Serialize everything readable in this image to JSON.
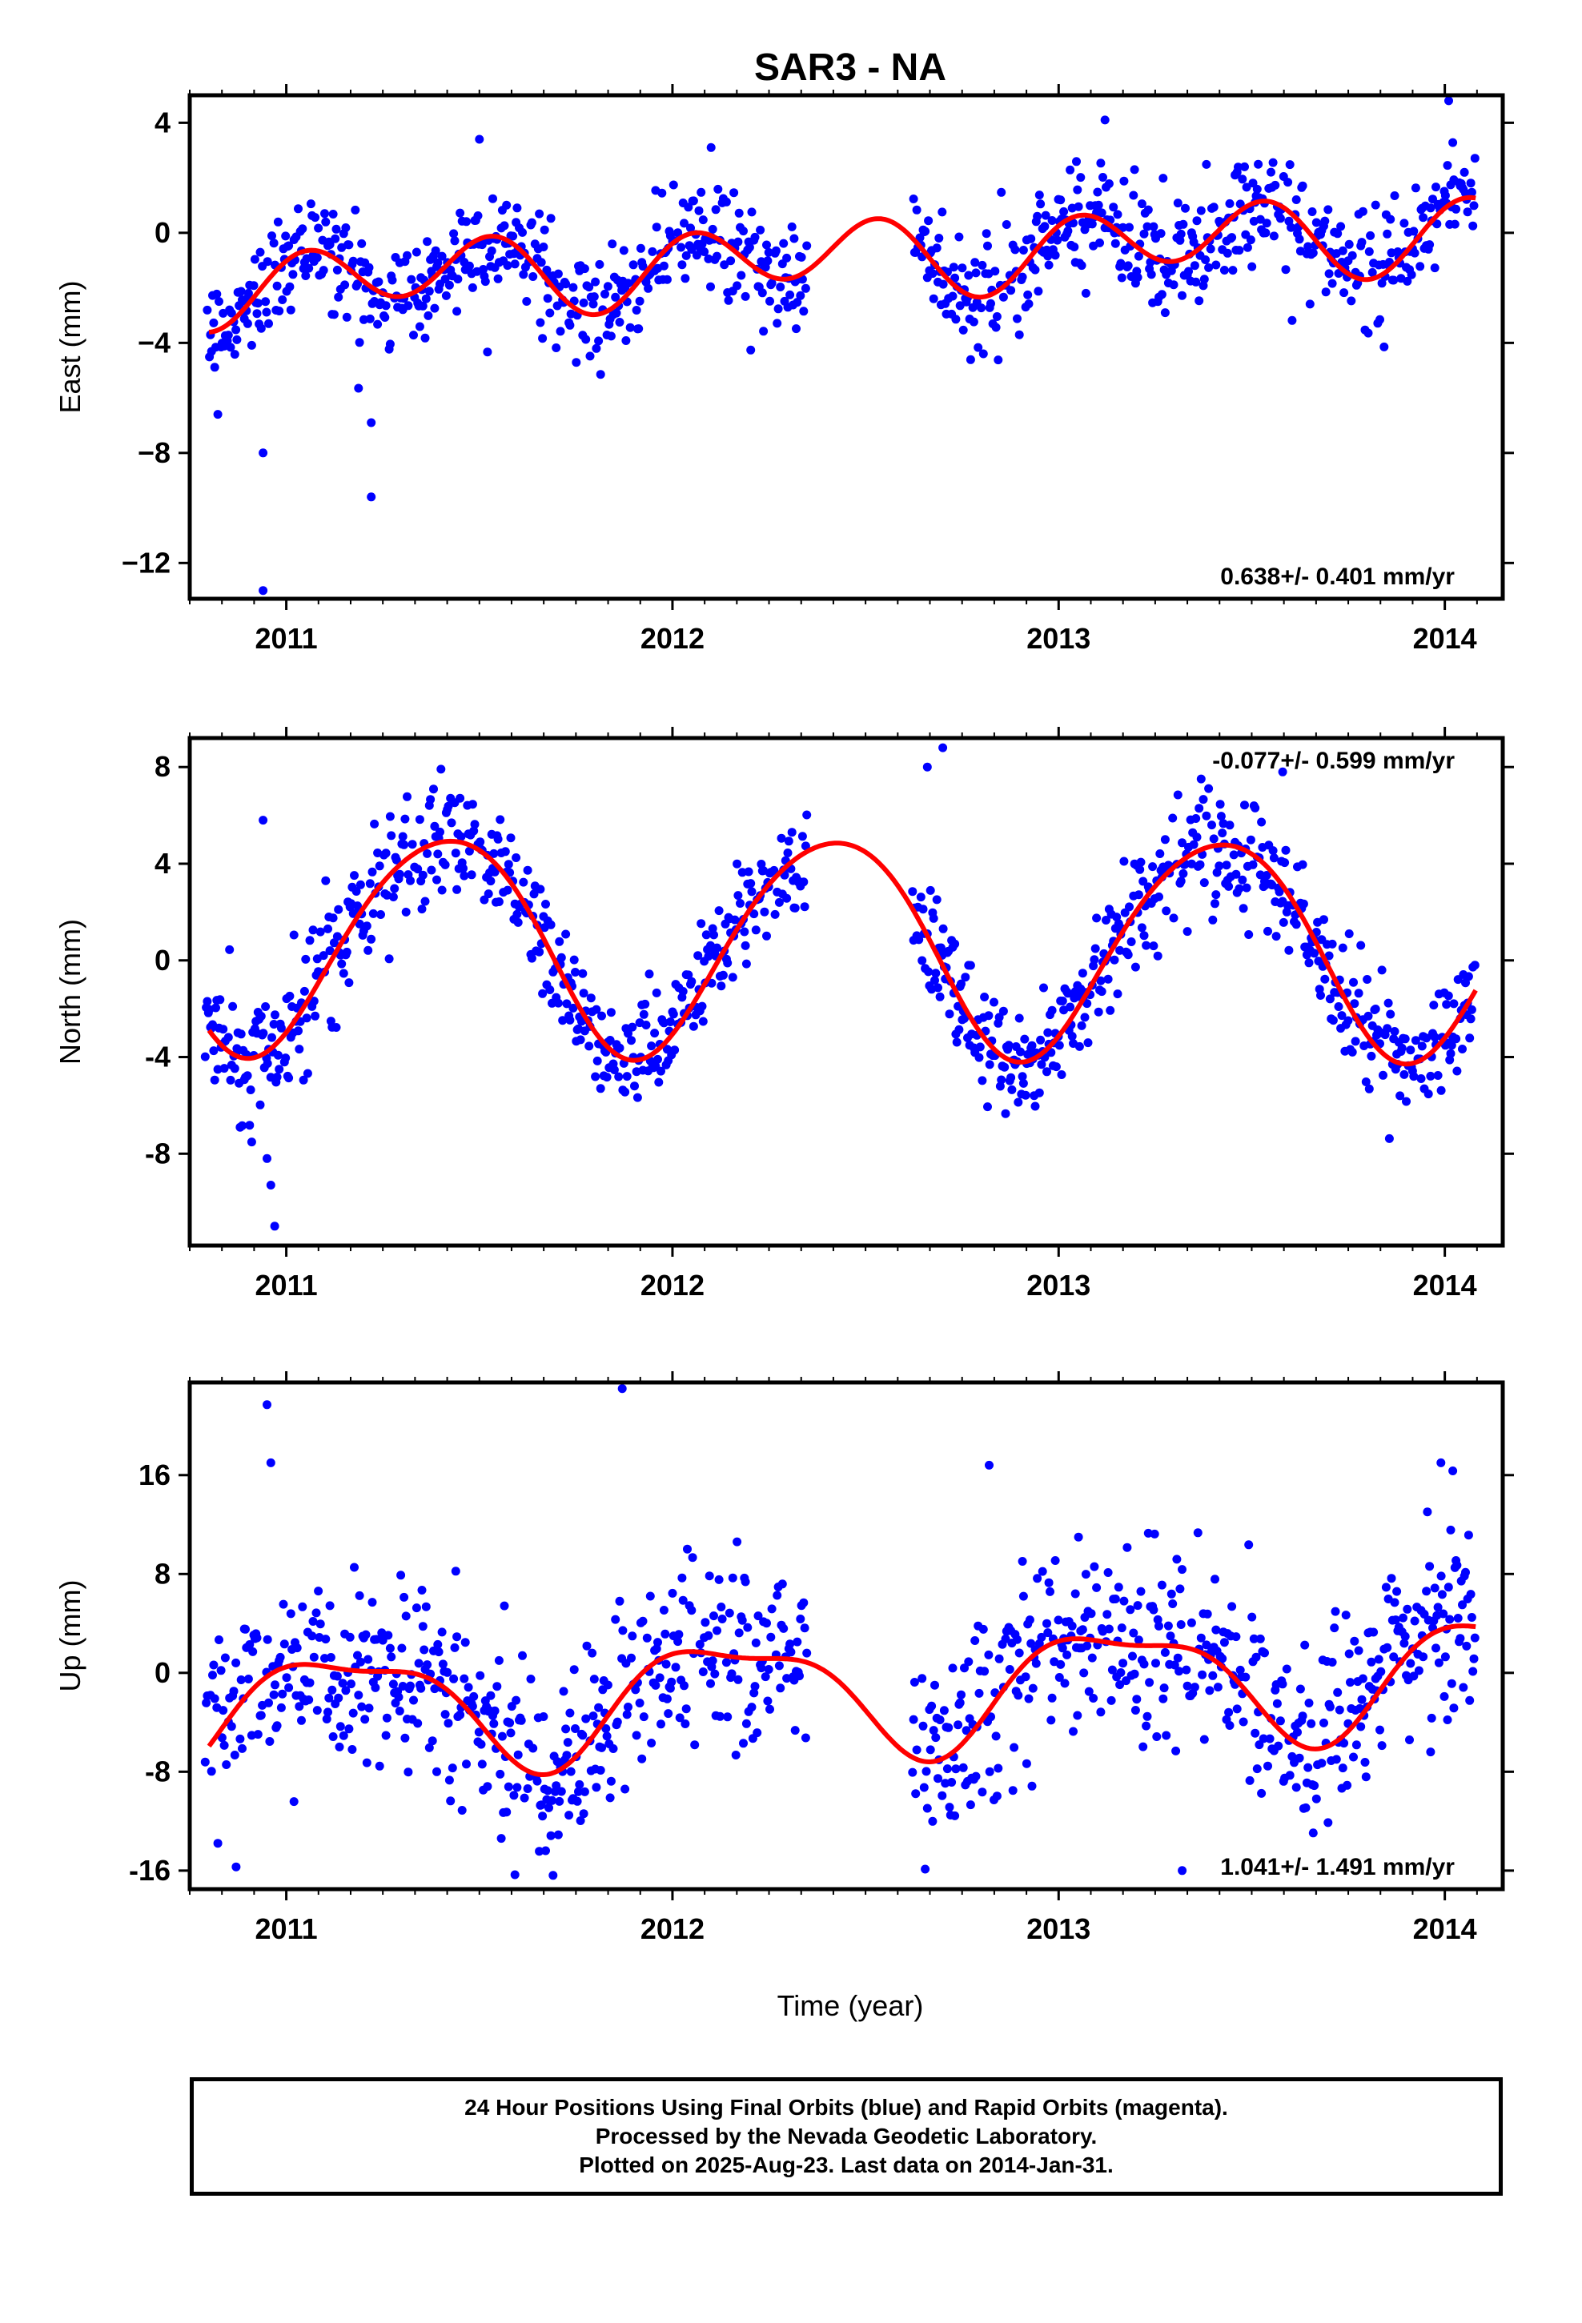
{
  "title": "SAR3 - NA",
  "x_axis_label": "Time (year)",
  "x_ticks": [
    "2011",
    "2012",
    "2013",
    "2014"
  ],
  "colors": {
    "points": "#0000ff",
    "fit": "#ff0000",
    "frame": "#000000"
  },
  "footer": {
    "line1": "24 Hour Positions Using Final Orbits (blue) and Rapid Orbits (magenta).",
    "line2": "Processed by the Nevada Geodetic Laboratory.",
    "line3": "Plotted on 2025-Aug-23. Last data on 2014-Jan-31."
  },
  "chart_data": [
    {
      "type": "scatter",
      "component": "East",
      "ylabel": "East (mm)",
      "xlim": [
        2010.75,
        2014.15
      ],
      "ylim": [
        -13.3,
        5.0
      ],
      "yticks": [
        4,
        0,
        -4,
        -8,
        -12
      ],
      "ytick_labels": [
        "4",
        "0",
        "−4",
        "−8",
        "−12"
      ],
      "rate_text": "0.638+/- 0.401 mm/yr",
      "rate_position": "bottom-right",
      "data_span": [
        2010.79,
        2014.08
      ],
      "gap": [
        2012.35,
        2012.62
      ],
      "fit": {
        "label": "seasonal fit",
        "offset": -0.9,
        "rate": 0.638,
        "t0": 2012.4,
        "annual_amp": 0.5,
        "annual_phase": -0.5,
        "semiannual_amp": 1.2,
        "semiannual_phase": 1.0
      },
      "scatter_sd": 1.0,
      "sample_points": [
        [
          2010.9,
          -3.3
        ],
        [
          2010.94,
          -8.0
        ],
        [
          2010.94,
          -13.0
        ],
        [
          2011.22,
          -6.9
        ],
        [
          2011.22,
          -9.6
        ],
        [
          2011.5,
          3.4
        ],
        [
          2012.1,
          3.1
        ],
        [
          2013.12,
          4.1
        ],
        [
          2014.01,
          4.8
        ]
      ]
    },
    {
      "type": "scatter",
      "component": "North",
      "ylabel": "North (mm)",
      "xlim": [
        2010.75,
        2014.15
      ],
      "ylim": [
        -11.8,
        9.2
      ],
      "yticks": [
        8,
        4,
        0,
        -4,
        -8
      ],
      "ytick_labels": [
        "8",
        "4",
        "0",
        "-4",
        "-8"
      ],
      "rate_text": "-0.077+/- 0.599 mm/yr",
      "rate_position": "top-right",
      "data_span": [
        2010.79,
        2014.08
      ],
      "gap": [
        2012.35,
        2012.62
      ],
      "fit": {
        "label": "seasonal fit",
        "offset": 0.7,
        "rate": -0.077,
        "t0": 2012.4,
        "annual_amp": 4.5,
        "annual_phase": -1.0,
        "semiannual_amp": 0.4,
        "semiannual_phase": 0.0
      },
      "scatter_sd": 1.2,
      "sample_points": [
        [
          2010.94,
          5.8
        ],
        [
          2010.95,
          -8.2
        ],
        [
          2010.96,
          -9.3
        ],
        [
          2010.97,
          -11.0
        ],
        [
          2012.66,
          8.0
        ],
        [
          2012.7,
          8.8
        ],
        [
          2013.58,
          7.8
        ]
      ]
    },
    {
      "type": "scatter",
      "component": "Up",
      "ylabel": "Up (mm)",
      "xlim": [
        2010.75,
        2014.15
      ],
      "ylim": [
        -17.5,
        23.5
      ],
      "yticks": [
        16,
        8,
        0,
        -8,
        -16
      ],
      "ytick_labels": [
        "16",
        "8",
        "0",
        "-8",
        "-16"
      ],
      "rate_text": "1.041+/- 1.491 mm/yr",
      "rate_position": "bottom-right",
      "data_span": [
        2010.79,
        2014.08
      ],
      "gap": [
        2012.35,
        2012.62
      ],
      "fit": {
        "label": "seasonal fit",
        "offset": -1.5,
        "rate": 1.041,
        "t0": 2012.4,
        "annual_amp": 4.5,
        "annual_phase": 0.6,
        "semiannual_amp": 1.5,
        "semiannual_phase": 2.5
      },
      "scatter_sd": 4.0,
      "sample_points": [
        [
          2010.95,
          21.7
        ],
        [
          2010.96,
          17.0
        ],
        [
          2011.87,
          23.0
        ],
        [
          2010.87,
          -15.7
        ],
        [
          2012.82,
          16.8
        ],
        [
          2013.99,
          17.0
        ],
        [
          2013.32,
          -16.0
        ]
      ]
    }
  ]
}
